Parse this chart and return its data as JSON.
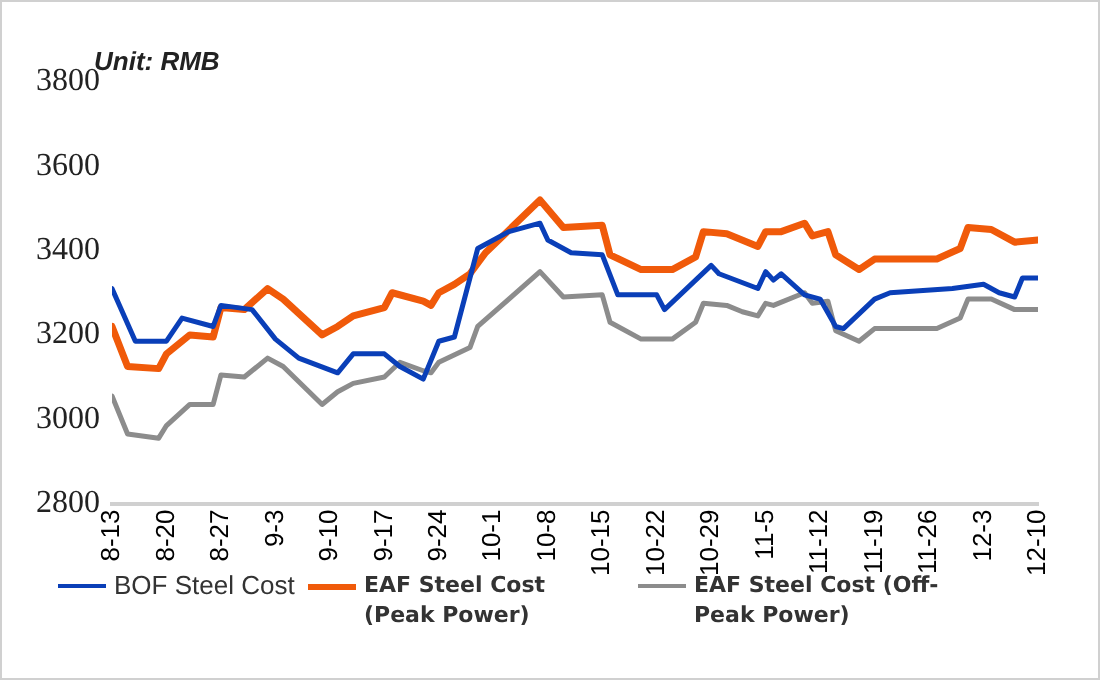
{
  "chart_data": {
    "type": "line",
    "annotations": [
      "Unit: RMB"
    ],
    "xlim": [
      "--08-13",
      "--12-10"
    ],
    "xticks": [
      {
        "value": "--08-13",
        "label": "8-13"
      },
      {
        "value": "--08-20",
        "label": "8-20"
      },
      {
        "value": "--08-27",
        "label": "8-27"
      },
      {
        "value": "--09-03",
        "label": "9-3"
      },
      {
        "value": "--09-10",
        "label": "9-10"
      },
      {
        "value": "--09-17",
        "label": "9-17"
      },
      {
        "value": "--09-24",
        "label": "9-24"
      },
      {
        "value": "--10-01",
        "label": "10-1"
      },
      {
        "value": "--10-08",
        "label": "10-8"
      },
      {
        "value": "--10-15",
        "label": "10-15"
      },
      {
        "value": "--10-22",
        "label": "10-22"
      },
      {
        "value": "--10-29",
        "label": "10-29"
      },
      {
        "value": "--11-05",
        "label": "11-5"
      },
      {
        "value": "--11-12",
        "label": "11-12"
      },
      {
        "value": "--11-19",
        "label": "11-19"
      },
      {
        "value": "--11-26",
        "label": "11-26"
      },
      {
        "value": "--12-03",
        "label": "12-3"
      },
      {
        "value": "--12-10",
        "label": "12-10"
      }
    ],
    "ylim": [
      2800,
      3800
    ],
    "yticks": [
      2800,
      3000,
      3200,
      3400,
      3600,
      3800
    ],
    "grid": false,
    "legend": "bottom",
    "marker": "none",
    "line_style": "solid",
    "series": [
      {
        "name": "BOF Steel Cost",
        "color": "#0a3fb8",
        "x": [
          "--08-13",
          "--08-16",
          "--08-20",
          "--08-22",
          "--08-26",
          "--08-27",
          "--08-31",
          "--09-03",
          "--09-06",
          "--09-11",
          "--09-13",
          "--09-17",
          "--09-19",
          "--09-22",
          "--09-24",
          "--09-26",
          "--09-29",
          "--10-03",
          "--10-07",
          "--10-08",
          "--10-11",
          "--10-15",
          "--10-17",
          "--10-22",
          "--10-23",
          "--10-29",
          "--10-30",
          "--11-04",
          "--11-05",
          "--11-06",
          "--11-07",
          "--11-10",
          "--11-12",
          "--11-14",
          "--11-15",
          "--11-19",
          "--11-21",
          "--11-29",
          "--12-03",
          "--12-05",
          "--12-07",
          "--12-08",
          "--12-10"
        ],
        "values": [
          3310,
          3185,
          3185,
          3240,
          3220,
          3270,
          3260,
          3190,
          3145,
          3110,
          3155,
          3155,
          3125,
          3095,
          3185,
          3195,
          3405,
          3445,
          3465,
          3425,
          3395,
          3390,
          3295,
          3295,
          3260,
          3365,
          3345,
          3310,
          3350,
          3330,
          3345,
          3295,
          3285,
          3220,
          3215,
          3285,
          3300,
          3310,
          3320,
          3300,
          3290,
          3335,
          3335
        ]
      },
      {
        "name": "EAF Steel Cost (Peak Power)",
        "color": "#f05a0a",
        "x": [
          "--08-13",
          "--08-15",
          "--08-19",
          "--08-20",
          "--08-23",
          "--08-26",
          "--08-27",
          "--08-30",
          "--09-02",
          "--09-04",
          "--09-09",
          "--09-11",
          "--09-13",
          "--09-17",
          "--09-18",
          "--09-22",
          "--09-23",
          "--09-24",
          "--09-26",
          "--09-28",
          "--09-30",
          "--10-07",
          "--10-10",
          "--10-15",
          "--10-16",
          "--10-20",
          "--10-24",
          "--10-27",
          "--10-28",
          "--10-31",
          "--11-04",
          "--11-05",
          "--11-07",
          "--11-10",
          "--11-11",
          "--11-13",
          "--11-14",
          "--11-17",
          "--11-19",
          "--11-27",
          "--11-30",
          "--12-01",
          "--12-04",
          "--12-07",
          "--12-10"
        ],
        "values": [
          3220,
          3125,
          3120,
          3155,
          3200,
          3195,
          3265,
          3260,
          3310,
          3285,
          3200,
          3220,
          3245,
          3265,
          3300,
          3280,
          3270,
          3300,
          3320,
          3345,
          3395,
          3520,
          3455,
          3460,
          3390,
          3355,
          3355,
          3385,
          3445,
          3440,
          3410,
          3445,
          3445,
          3465,
          3435,
          3445,
          3390,
          3355,
          3380,
          3380,
          3405,
          3455,
          3450,
          3420,
          3425
        ]
      },
      {
        "name": "EAF Steel Cost (Off-Peak Power)",
        "color": "#8c8c8c",
        "x": [
          "--08-13",
          "--08-15",
          "--08-19",
          "--08-20",
          "--08-23",
          "--08-26",
          "--08-27",
          "--08-30",
          "--09-02",
          "--09-04",
          "--09-09",
          "--09-11",
          "--09-13",
          "--09-17",
          "--09-19",
          "--09-22",
          "--09-23",
          "--09-24",
          "--09-28",
          "--09-29",
          "--10-07",
          "--10-10",
          "--10-15",
          "--10-16",
          "--10-20",
          "--10-24",
          "--10-27",
          "--10-28",
          "--10-31",
          "--11-02",
          "--11-04",
          "--11-05",
          "--11-06",
          "--11-10",
          "--11-11",
          "--11-13",
          "--11-14",
          "--11-17",
          "--11-19",
          "--11-27",
          "--11-30",
          "--12-01",
          "--12-04",
          "--12-07",
          "--12-10"
        ],
        "values": [
          3055,
          2965,
          2955,
          2985,
          3035,
          3035,
          3105,
          3100,
          3145,
          3125,
          3035,
          3065,
          3085,
          3100,
          3135,
          3115,
          3110,
          3135,
          3170,
          3220,
          3350,
          3290,
          3295,
          3230,
          3190,
          3190,
          3230,
          3275,
          3270,
          3255,
          3245,
          3275,
          3270,
          3300,
          3275,
          3280,
          3210,
          3185,
          3215,
          3215,
          3240,
          3285,
          3285,
          3260,
          3260
        ]
      }
    ]
  }
}
